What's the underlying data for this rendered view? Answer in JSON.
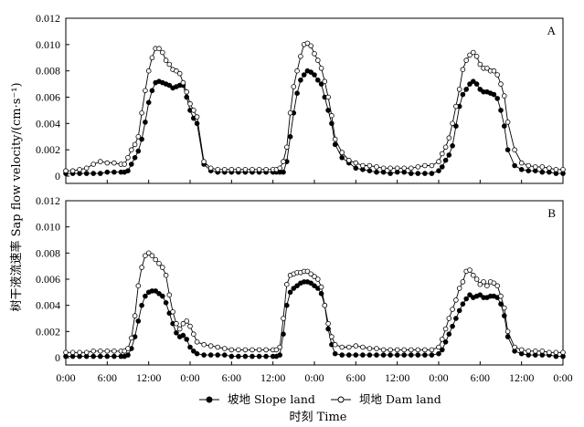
{
  "chart_data": {
    "type": "line",
    "ylabel": "树干液流速率 Sap flow velocity/(cm·s⁻¹)",
    "xlabel": "时刻 Time",
    "x_tick_labels": [
      "0:00",
      "6:00",
      "12:00",
      "0:00",
      "6:00",
      "12:00",
      "0:00",
      "6:00",
      "12:00",
      "0:00",
      "6:00",
      "12:00",
      "0:00"
    ],
    "x_range_hours": [
      0,
      72
    ],
    "ylim": [
      0,
      0.012
    ],
    "y_ticks": [
      "0",
      "0.002",
      "0.004",
      "0.006",
      "0.008",
      "0.010",
      "0.012"
    ],
    "legend": {
      "placement": "bottom-center",
      "entries": [
        {
          "label": "坡地 Slope land",
          "marker": "filled-circle"
        },
        {
          "label": "坝地 Dam land",
          "marker": "open-circle"
        }
      ]
    },
    "colors": {
      "line": "#000000",
      "dam_marker_fill": "#ffffff",
      "slope_marker_fill": "#000000"
    },
    "panels": [
      {
        "label": "A",
        "series": [
          {
            "name": "坡地 Slope land",
            "x": [
              0,
              1,
              2,
              3,
              4,
              5,
              6,
              7,
              8,
              8.5,
              9,
              9.5,
              10,
              10.5,
              11,
              11.5,
              12,
              12.5,
              13,
              13.5,
              14,
              14.5,
              15,
              15.5,
              16,
              16.5,
              17,
              17.5,
              18,
              18.5,
              19,
              20,
              21,
              22,
              23,
              24,
              25,
              26,
              27,
              28,
              29,
              30,
              30.5,
              31,
              31.5,
              32,
              32.5,
              33,
              33.5,
              34,
              34.5,
              35,
              35.5,
              36,
              36.5,
              37,
              37.5,
              38,
              38.5,
              39,
              40,
              41,
              42,
              43,
              44,
              45,
              46,
              47,
              48,
              49,
              50,
              51,
              52,
              53,
              54,
              54.5,
              55,
              55.5,
              56,
              56.5,
              57,
              57.5,
              58,
              58.5,
              59,
              59.5,
              60,
              60.5,
              61,
              61.5,
              62,
              62.5,
              63,
              63.5,
              64,
              65,
              66,
              67,
              68,
              69,
              70,
              71,
              72
            ],
            "y": [
              0.0002,
              0.0002,
              0.0002,
              0.0002,
              0.0002,
              0.0002,
              0.0003,
              0.0003,
              0.0003,
              0.0003,
              0.0004,
              0.0009,
              0.0014,
              0.0019,
              0.0028,
              0.0041,
              0.0056,
              0.0065,
              0.0071,
              0.0072,
              0.0071,
              0.007,
              0.0069,
              0.0067,
              0.0068,
              0.0069,
              0.0069,
              0.006,
              0.005,
              0.0044,
              0.004,
              0.0009,
              0.0004,
              0.0003,
              0.0003,
              0.0003,
              0.0003,
              0.0003,
              0.0003,
              0.0003,
              0.0003,
              0.0003,
              0.0003,
              0.0003,
              0.0003,
              0.0011,
              0.003,
              0.0048,
              0.0063,
              0.0073,
              0.0077,
              0.008,
              0.0079,
              0.0077,
              0.0073,
              0.007,
              0.006,
              0.005,
              0.004,
              0.0024,
              0.0014,
              0.001,
              0.0006,
              0.0005,
              0.0004,
              0.0003,
              0.0003,
              0.0002,
              0.0003,
              0.0003,
              0.0002,
              0.0002,
              0.0002,
              0.0002,
              0.0004,
              0.0007,
              0.0012,
              0.0016,
              0.0023,
              0.0038,
              0.0053,
              0.0062,
              0.0066,
              0.007,
              0.0072,
              0.007,
              0.0066,
              0.0064,
              0.0064,
              0.0063,
              0.0062,
              0.0059,
              0.005,
              0.0038,
              0.002,
              0.0008,
              0.0005,
              0.0004,
              0.0004,
              0.0003,
              0.0003,
              0.0002,
              0.0002
            ]
          },
          {
            "name": "坝地 Dam land",
            "x": [
              0,
              1,
              2,
              3,
              4,
              5,
              6,
              7,
              8,
              8.5,
              9,
              9.5,
              10,
              10.5,
              11,
              11.5,
              12,
              12.5,
              13,
              13.5,
              14,
              14.5,
              15,
              15.5,
              16,
              16.5,
              17,
              17.5,
              18,
              18.5,
              19,
              20,
              21,
              22,
              23,
              24,
              25,
              26,
              27,
              28,
              29,
              30,
              30.5,
              31,
              31.5,
              32,
              32.5,
              33,
              33.5,
              34,
              34.5,
              35,
              35.5,
              36,
              36.5,
              37,
              37.5,
              38,
              38.5,
              39,
              40,
              41,
              42,
              43,
              44,
              45,
              46,
              47,
              48,
              49,
              50,
              51,
              52,
              53,
              54,
              54.5,
              55,
              55.5,
              56,
              56.5,
              57,
              57.5,
              58,
              58.5,
              59,
              59.5,
              60,
              60.5,
              61,
              61.5,
              62,
              62.5,
              63,
              63.5,
              64,
              65,
              66,
              67,
              68,
              69,
              70,
              71,
              72
            ],
            "y": [
              0.0004,
              0.0004,
              0.0005,
              0.0006,
              0.0009,
              0.0011,
              0.001,
              0.001,
              0.0009,
              0.0009,
              0.0014,
              0.002,
              0.0024,
              0.003,
              0.0048,
              0.0065,
              0.008,
              0.009,
              0.0097,
              0.0097,
              0.0094,
              0.0088,
              0.0085,
              0.0081,
              0.008,
              0.0078,
              0.0071,
              0.0064,
              0.0055,
              0.005,
              0.0045,
              0.0011,
              0.0006,
              0.0005,
              0.0005,
              0.0005,
              0.0005,
              0.0005,
              0.0005,
              0.0005,
              0.0005,
              0.0005,
              0.0005,
              0.0006,
              0.0011,
              0.0022,
              0.0048,
              0.0068,
              0.008,
              0.0091,
              0.01,
              0.0101,
              0.0099,
              0.0093,
              0.0088,
              0.0082,
              0.0072,
              0.006,
              0.0046,
              0.0028,
              0.0018,
              0.0012,
              0.001,
              0.0008,
              0.0008,
              0.0007,
              0.0006,
              0.0006,
              0.0006,
              0.0006,
              0.0006,
              0.0007,
              0.0008,
              0.0008,
              0.0011,
              0.0017,
              0.0022,
              0.0029,
              0.004,
              0.0053,
              0.0066,
              0.0081,
              0.0088,
              0.0092,
              0.0094,
              0.0091,
              0.0085,
              0.0082,
              0.0082,
              0.008,
              0.008,
              0.0077,
              0.007,
              0.0061,
              0.0041,
              0.002,
              0.001,
              0.0008,
              0.0007,
              0.0007,
              0.0006,
              0.0005,
              0.0005
            ]
          }
        ]
      },
      {
        "label": "B",
        "series": [
          {
            "name": "坡地 Slope land",
            "x": [
              0,
              1,
              2,
              3,
              4,
              5,
              6,
              7,
              8,
              8.5,
              9,
              9.5,
              10,
              10.5,
              11,
              11.5,
              12,
              12.5,
              13,
              13.5,
              14,
              14.5,
              15,
              15.5,
              16,
              16.5,
              17,
              17.5,
              18,
              18.5,
              19,
              20,
              21,
              22,
              23,
              24,
              25,
              26,
              27,
              28,
              29,
              30,
              30.5,
              31,
              31.5,
              32,
              32.5,
              33,
              33.5,
              34,
              34.5,
              35,
              35.5,
              36,
              36.5,
              37,
              37.5,
              38,
              38.5,
              39,
              40,
              41,
              42,
              43,
              44,
              45,
              46,
              47,
              48,
              49,
              50,
              51,
              52,
              53,
              54,
              54.5,
              55,
              55.5,
              56,
              56.5,
              57,
              57.5,
              58,
              58.5,
              59,
              59.5,
              60,
              60.5,
              61,
              61.5,
              62,
              62.5,
              63,
              63.5,
              64,
              65,
              66,
              67,
              68,
              69,
              70,
              71,
              72
            ],
            "y": [
              0.0001,
              0.0001,
              0.0001,
              0.0001,
              0.0001,
              0.0001,
              0.0001,
              0.0001,
              0.0001,
              0.0001,
              0.0002,
              0.0007,
              0.0016,
              0.0028,
              0.004,
              0.0047,
              0.005,
              0.0051,
              0.0051,
              0.0049,
              0.0047,
              0.0042,
              0.0034,
              0.0026,
              0.0019,
              0.0016,
              0.0017,
              0.0014,
              0.0008,
              0.0005,
              0.0003,
              0.0002,
              0.0002,
              0.0002,
              0.0002,
              0.0001,
              0.0001,
              0.0001,
              0.0001,
              0.0001,
              0.0001,
              0.0001,
              0.0001,
              0.0002,
              0.0018,
              0.004,
              0.005,
              0.0053,
              0.0055,
              0.0057,
              0.0058,
              0.0058,
              0.0057,
              0.0055,
              0.0053,
              0.0049,
              0.004,
              0.0022,
              0.001,
              0.0003,
              0.0002,
              0.0002,
              0.0002,
              0.0002,
              0.0002,
              0.0002,
              0.0002,
              0.0002,
              0.0002,
              0.0002,
              0.0002,
              0.0002,
              0.0002,
              0.0002,
              0.0003,
              0.0006,
              0.0012,
              0.0018,
              0.0024,
              0.003,
              0.0036,
              0.0041,
              0.0045,
              0.0048,
              0.0046,
              0.0047,
              0.0048,
              0.0046,
              0.0046,
              0.0047,
              0.0047,
              0.0046,
              0.0041,
              0.0032,
              0.0016,
              0.0005,
              0.0003,
              0.0002,
              0.0002,
              0.0002,
              0.0002,
              0.0001,
              0.0001
            ]
          },
          {
            "name": "坝地 Dam land",
            "x": [
              0,
              1,
              2,
              3,
              4,
              5,
              6,
              7,
              8,
              8.5,
              9,
              9.5,
              10,
              10.5,
              11,
              11.5,
              12,
              12.5,
              13,
              13.5,
              14,
              14.5,
              15,
              15.5,
              16,
              16.5,
              17,
              17.5,
              18,
              18.5,
              19,
              20,
              21,
              22,
              23,
              24,
              25,
              26,
              27,
              28,
              29,
              30,
              30.5,
              31,
              31.5,
              32,
              32.5,
              33,
              33.5,
              34,
              34.5,
              35,
              35.5,
              36,
              36.5,
              37,
              37.5,
              38,
              38.5,
              39,
              40,
              41,
              42,
              43,
              44,
              45,
              46,
              47,
              48,
              49,
              50,
              51,
              52,
              53,
              54,
              54.5,
              55,
              55.5,
              56,
              56.5,
              57,
              57.5,
              58,
              58.5,
              59,
              59.5,
              60,
              60.5,
              61,
              61.5,
              62,
              62.5,
              63,
              63.5,
              64,
              65,
              66,
              67,
              68,
              69,
              70,
              71,
              72
            ],
            "y": [
              0.0004,
              0.0004,
              0.0004,
              0.0004,
              0.0005,
              0.0005,
              0.0005,
              0.0005,
              0.0005,
              0.0005,
              0.0007,
              0.0015,
              0.0032,
              0.0055,
              0.0069,
              0.0078,
              0.008,
              0.0078,
              0.0075,
              0.0072,
              0.0069,
              0.0063,
              0.0048,
              0.0035,
              0.0026,
              0.0022,
              0.0026,
              0.0028,
              0.0024,
              0.0018,
              0.0012,
              0.001,
              0.0009,
              0.0008,
              0.0007,
              0.0006,
              0.0006,
              0.0006,
              0.0006,
              0.0006,
              0.0006,
              0.0006,
              0.0006,
              0.0008,
              0.003,
              0.0056,
              0.0063,
              0.0064,
              0.0065,
              0.0065,
              0.0066,
              0.0066,
              0.0064,
              0.0062,
              0.006,
              0.0054,
              0.004,
              0.0026,
              0.0016,
              0.001,
              0.0008,
              0.0008,
              0.0009,
              0.0008,
              0.0007,
              0.0007,
              0.0006,
              0.0006,
              0.0006,
              0.0006,
              0.0006,
              0.0006,
              0.0006,
              0.0006,
              0.0008,
              0.0014,
              0.0022,
              0.003,
              0.0037,
              0.0044,
              0.0053,
              0.0058,
              0.0066,
              0.0067,
              0.0063,
              0.006,
              0.0056,
              0.0058,
              0.0055,
              0.0058,
              0.0057,
              0.0055,
              0.0047,
              0.0038,
              0.002,
              0.0008,
              0.0006,
              0.0005,
              0.0005,
              0.0005,
              0.0004,
              0.0004,
              0.0004
            ]
          }
        ]
      }
    ]
  }
}
